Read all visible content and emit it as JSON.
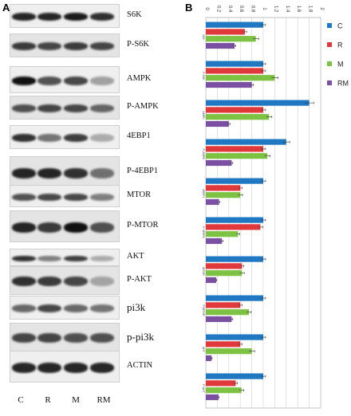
{
  "panels": {
    "a": "A",
    "b": "B"
  },
  "blots": [
    {
      "label": "S6K",
      "size": "normal",
      "top": 5,
      "height": 30,
      "bands": [
        0.9,
        0.9,
        0.95,
        0.85
      ]
    },
    {
      "label": "P-S6K",
      "size": "normal",
      "top": 42,
      "height": 30,
      "bands": [
        0.8,
        0.75,
        0.8,
        0.75
      ]
    },
    {
      "label": "AMPK",
      "size": "normal",
      "top": 83,
      "height": 34,
      "bands": [
        1.0,
        0.7,
        0.75,
        0.35
      ]
    },
    {
      "label": "P-AMPK",
      "size": "normal",
      "top": 120,
      "height": 30,
      "bands": [
        0.7,
        0.75,
        0.75,
        0.6
      ]
    },
    {
      "label": "4EBP1",
      "size": "normal",
      "top": 157,
      "height": 30,
      "bands": [
        0.85,
        0.55,
        0.8,
        0.3
      ]
    },
    {
      "label": "P-4EBP1",
      "size": "normal",
      "top": 196,
      "height": 40,
      "bands": [
        0.9,
        0.9,
        0.85,
        0.55
      ]
    },
    {
      "label": "MTOR",
      "size": "normal",
      "top": 232,
      "height": 28,
      "bands": [
        0.7,
        0.75,
        0.75,
        0.5
      ]
    },
    {
      "label": "P-MTOR",
      "size": "normal",
      "top": 264,
      "height": 40,
      "bands": [
        0.9,
        0.8,
        1.0,
        0.7
      ]
    },
    {
      "label": "AKT",
      "size": "normal",
      "top": 312,
      "height": 22,
      "bands": [
        0.85,
        0.5,
        0.8,
        0.3
      ]
    },
    {
      "label": "P-AKT",
      "size": "normal",
      "top": 334,
      "height": 36,
      "bands": [
        0.85,
        0.8,
        0.75,
        0.3
      ]
    },
    {
      "label": "pi3k",
      "size": "big",
      "top": 371,
      "height": 30,
      "bands": [
        0.6,
        0.75,
        0.6,
        0.55
      ]
    },
    {
      "label": "p-pi3k",
      "size": "big",
      "top": 405,
      "height": 36,
      "bands": [
        0.75,
        0.75,
        0.7,
        0.7
      ]
    },
    {
      "label": "ACTIN",
      "size": "normal",
      "top": 440,
      "height": 40,
      "bands": [
        0.9,
        0.9,
        0.9,
        0.9
      ]
    }
  ],
  "lanes": [
    "C",
    "R",
    "M",
    "RM"
  ],
  "chart_data": {
    "type": "bar",
    "orientation": "horizontal",
    "categories": [
      "S6K",
      "P-S6K",
      "AMPK",
      "P-AMPK",
      "4EBP1",
      "P-4EBP1",
      "MTOR",
      "P-MTOR",
      "AKT",
      "P-AKT"
    ],
    "series": [
      {
        "name": "C",
        "color": "#1f78c1",
        "values": [
          1.0,
          1.0,
          1.8,
          1.4,
          1.0,
          1.0,
          1.0,
          1.0,
          1.0,
          1.0
        ],
        "errors": [
          0.04,
          0.04,
          0.08,
          0.06,
          0.04,
          0.04,
          0.04,
          0.04,
          0.04,
          0.04
        ]
      },
      {
        "name": "R",
        "color": "#e0393c",
        "values": [
          0.68,
          1.0,
          1.0,
          1.0,
          0.6,
          0.95,
          0.63,
          0.6,
          0.6,
          0.52
        ],
        "errors": [
          0.03,
          0.04,
          0.04,
          0.04,
          0.03,
          0.04,
          0.03,
          0.03,
          0.03,
          0.03
        ]
      },
      {
        "name": "M",
        "color": "#7dc242",
        "values": [
          0.87,
          1.2,
          1.1,
          1.07,
          0.6,
          0.56,
          0.63,
          0.75,
          0.8,
          0.62
        ],
        "errors": [
          0.05,
          0.06,
          0.05,
          0.05,
          0.04,
          0.03,
          0.04,
          0.04,
          0.05,
          0.04
        ]
      },
      {
        "name": "RM",
        "color": "#7b4fa2",
        "values": [
          0.5,
          0.8,
          0.4,
          0.45,
          0.23,
          0.28,
          0.18,
          0.45,
          0.1,
          0.22
        ],
        "errors": [
          0.02,
          0.03,
          0.02,
          0.02,
          0.01,
          0.02,
          0.01,
          0.02,
          0.01,
          0.01
        ]
      }
    ],
    "xlim": [
      0,
      2
    ],
    "ticks": [
      "0",
      "0.2",
      "0.4",
      "0.6",
      "0.8",
      "1",
      "1.2",
      "1.4",
      "1.6",
      "1.8",
      "2"
    ],
    "grid": true,
    "legend": "right",
    "axis_position": "top"
  }
}
